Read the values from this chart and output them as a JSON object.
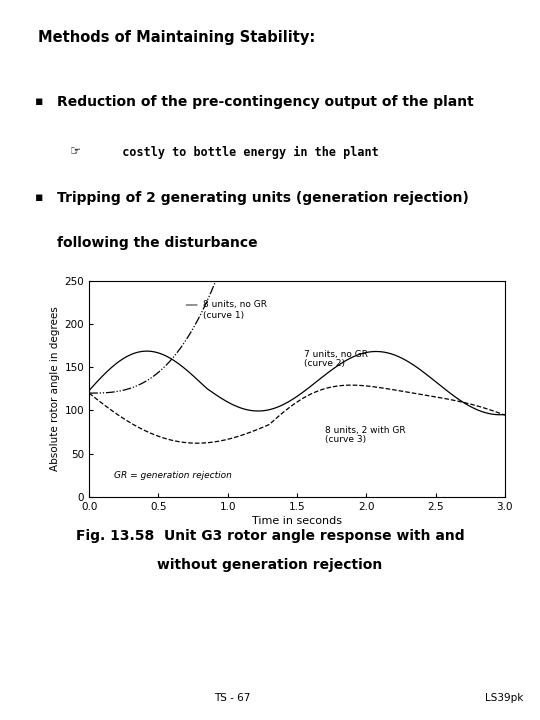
{
  "title": "Methods of Maintaining Stability:",
  "bullet1": "Reduction of the pre-contingency output of the plant",
  "sub_bullet_symbol": "☞",
  "sub_bullet_text": "  costly to bottle energy in the plant",
  "bullet2_line1": "Tripping of 2 generating units (generation rejection)",
  "bullet2_line2": "following the disturbance",
  "fig_caption": "Fig. 13.58  Unit G3 rotor angle response with and\nwithout generation rejection",
  "footer_left": "TS - 67",
  "footer_right": "LS39pk",
  "xlabel": "Time in seconds",
  "ylabel": "Absolute rotor angle in degrees",
  "xlim": [
    0.0,
    3.0
  ],
  "ylim": [
    0,
    250
  ],
  "yticks": [
    0,
    50,
    100,
    150,
    200,
    250
  ],
  "xticks": [
    0.0,
    0.5,
    1.0,
    1.5,
    2.0,
    2.5,
    3.0
  ],
  "annotation_gr": "GR = generation rejection",
  "curve1_label_line1": "8 units, no GR",
  "curve1_label_line2": "(curve 1)",
  "curve2_label_line1": "7 units, no GR",
  "curve2_label_line2": "(curve 2)",
  "curve3_label_line1": "8 units, 2 with GR",
  "curve3_label_line2": "(curve 3)",
  "bg_color": "#ffffff",
  "text_color": "#000000"
}
